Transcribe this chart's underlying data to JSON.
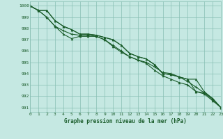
{
  "xlabel": "Graphe pression niveau de la mer (hPa)",
  "ylim": [
    990.6,
    1000.4
  ],
  "xlim": [
    0,
    23
  ],
  "yticks": [
    991,
    992,
    993,
    994,
    995,
    996,
    997,
    998,
    999,
    1000
  ],
  "xticks": [
    0,
    1,
    2,
    3,
    4,
    5,
    6,
    7,
    8,
    9,
    10,
    11,
    12,
    13,
    14,
    15,
    16,
    17,
    18,
    19,
    20,
    21,
    22,
    23
  ],
  "background_color": "#c5e8e2",
  "grid_color": "#88bfb4",
  "line_color": "#1a5c2a",
  "line1": [
    1000.0,
    999.6,
    999.6,
    998.7,
    998.2,
    997.9,
    997.5,
    997.5,
    997.4,
    997.2,
    997.0,
    996.5,
    995.8,
    995.5,
    995.3,
    994.8,
    994.0,
    993.9,
    993.7,
    993.5,
    993.5,
    992.4,
    991.8,
    991.0
  ],
  "line2": [
    1000.0,
    999.6,
    999.6,
    998.7,
    998.2,
    997.9,
    997.5,
    997.5,
    997.4,
    997.2,
    997.0,
    996.5,
    995.8,
    995.5,
    995.3,
    994.8,
    994.0,
    993.9,
    993.7,
    993.5,
    992.4,
    992.3,
    991.8,
    991.0
  ],
  "line3_plus": [
    1000.0,
    999.6,
    999.0,
    998.2,
    997.8,
    997.5,
    997.4,
    997.4,
    997.3,
    997.0,
    996.5,
    996.0,
    995.5,
    995.2,
    995.0,
    994.6,
    994.1,
    994.0,
    993.7,
    993.3,
    992.8,
    992.3,
    991.7,
    991.0
  ],
  "line4_low": [
    1000.0,
    999.6,
    999.0,
    998.2,
    997.5,
    997.1,
    997.3,
    997.3,
    997.3,
    997.0,
    996.4,
    995.9,
    995.5,
    995.2,
    994.9,
    994.3,
    993.8,
    993.5,
    993.2,
    993.0,
    992.4,
    992.2,
    991.6,
    991.0
  ]
}
